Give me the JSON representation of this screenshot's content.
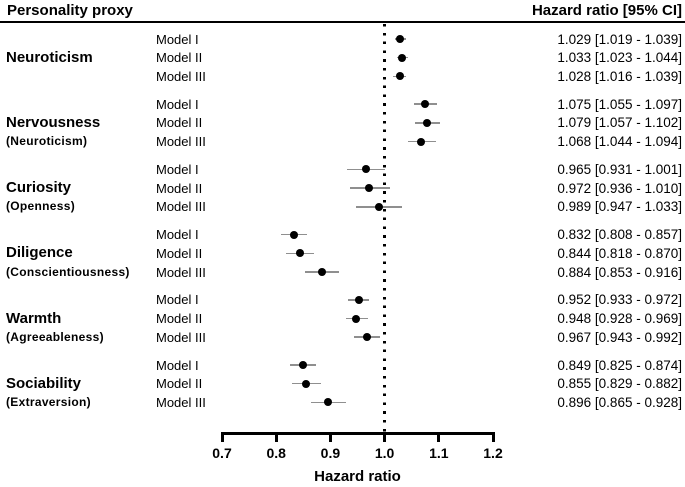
{
  "header": {
    "left": "Personality proxy",
    "right": "Hazard ratio [95% CI]"
  },
  "chart_data": {
    "type": "forest",
    "title": "",
    "xlabel": "Hazard ratio",
    "axis": {
      "label": "Hazard ratio",
      "min": 0.7,
      "max": 1.2,
      "ticks": [
        0.7,
        0.8,
        0.9,
        1.0,
        1.1,
        1.2
      ],
      "tick_labels": [
        "0.7",
        "0.8",
        "0.9",
        "1.0",
        "1.1",
        "1.2"
      ],
      "reference_line": 1.0
    },
    "value_column_header": "Hazard ratio [95% CI]",
    "groups": [
      {
        "name": "Neuroticism",
        "subtitle": "",
        "rows": [
          {
            "model": "Model I",
            "hr": 1.029,
            "lo": 1.019,
            "hi": 1.039,
            "label": "1.029 [1.019 - 1.039]"
          },
          {
            "model": "Model II",
            "hr": 1.033,
            "lo": 1.023,
            "hi": 1.044,
            "label": "1.033 [1.023 - 1.044]"
          },
          {
            "model": "Model III",
            "hr": 1.028,
            "lo": 1.016,
            "hi": 1.039,
            "label": "1.028 [1.016 - 1.039]"
          }
        ]
      },
      {
        "name": "Nervousness",
        "subtitle": "(Neuroticism)",
        "rows": [
          {
            "model": "Model I",
            "hr": 1.075,
            "lo": 1.055,
            "hi": 1.097,
            "label": "1.075 [1.055 - 1.097]"
          },
          {
            "model": "Model II",
            "hr": 1.079,
            "lo": 1.057,
            "hi": 1.102,
            "label": "1.079 [1.057 - 1.102]"
          },
          {
            "model": "Model III",
            "hr": 1.068,
            "lo": 1.044,
            "hi": 1.094,
            "label": "1.068 [1.044 - 1.094]"
          }
        ]
      },
      {
        "name": "Curiosity",
        "subtitle": "(Openness)",
        "rows": [
          {
            "model": "Model I",
            "hr": 0.965,
            "lo": 0.931,
            "hi": 1.001,
            "label": "0.965 [0.931 - 1.001]"
          },
          {
            "model": "Model II",
            "hr": 0.972,
            "lo": 0.936,
            "hi": 1.01,
            "label": "0.972 [0.936 - 1.010]"
          },
          {
            "model": "Model III",
            "hr": 0.989,
            "lo": 0.947,
            "hi": 1.033,
            "label": "0.989 [0.947 - 1.033]"
          }
        ]
      },
      {
        "name": "Diligence",
        "subtitle": "(Conscientiousness)",
        "rows": [
          {
            "model": "Model I",
            "hr": 0.832,
            "lo": 0.808,
            "hi": 0.857,
            "label": "0.832 [0.808 - 0.857]"
          },
          {
            "model": "Model II",
            "hr": 0.844,
            "lo": 0.818,
            "hi": 0.87,
            "label": "0.844 [0.818 - 0.870]"
          },
          {
            "model": "Model III",
            "hr": 0.884,
            "lo": 0.853,
            "hi": 0.916,
            "label": "0.884 [0.853 - 0.916]"
          }
        ]
      },
      {
        "name": "Warmth",
        "subtitle": "(Agreeableness)",
        "rows": [
          {
            "model": "Model I",
            "hr": 0.952,
            "lo": 0.933,
            "hi": 0.972,
            "label": "0.952 [0.933 - 0.972]"
          },
          {
            "model": "Model II",
            "hr": 0.948,
            "lo": 0.928,
            "hi": 0.969,
            "label": "0.948 [0.928 - 0.969]"
          },
          {
            "model": "Model III",
            "hr": 0.967,
            "lo": 0.943,
            "hi": 0.992,
            "label": "0.967 [0.943 - 0.992]"
          }
        ]
      },
      {
        "name": "Sociability",
        "subtitle": "(Extraversion)",
        "rows": [
          {
            "model": "Model I",
            "hr": 0.849,
            "lo": 0.825,
            "hi": 0.874,
            "label": "0.849 [0.825 - 0.874]"
          },
          {
            "model": "Model II",
            "hr": 0.855,
            "lo": 0.829,
            "hi": 0.882,
            "label": "0.855 [0.829 - 0.882]"
          },
          {
            "model": "Model III",
            "hr": 0.896,
            "lo": 0.865,
            "hi": 0.928,
            "label": "0.896 [0.865 - 0.928]"
          }
        ]
      }
    ]
  }
}
